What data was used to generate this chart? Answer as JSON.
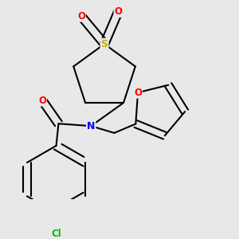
{
  "background_color": "#e8e8e8",
  "bond_color": "#000000",
  "atom_colors": {
    "S": "#c8b400",
    "O": "#ff0000",
    "N": "#0000ff",
    "Cl": "#00bb00",
    "C": "#000000"
  },
  "bond_width": 1.5,
  "figsize": [
    3.0,
    3.0
  ],
  "dpi": 100
}
